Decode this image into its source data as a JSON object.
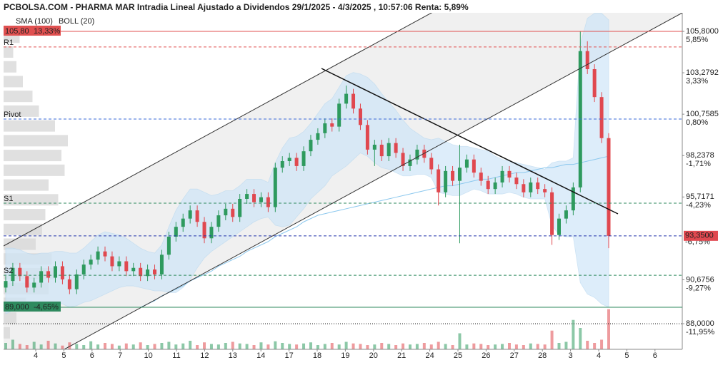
{
  "chart_data": {
    "type": "candlestick",
    "title": "PCBOLSA.COM - PHARMA MAR Intradia Lineal Ajustado a Dividendos 29/1/2025 - 4/3/2025 , 10:57:06 Renta: 5,89%",
    "legend": [
      {
        "name": "SMA (100)",
        "color": "#8cc8ee"
      },
      {
        "name": "BOLL (20)",
        "color": "#bbbbbb"
      }
    ],
    "categories": [
      "4",
      "5",
      "6",
      "7",
      "10",
      "11",
      "12",
      "13",
      "14",
      "17",
      "18",
      "19",
      "20",
      "21",
      "24",
      "25",
      "26",
      "27",
      "28",
      "3",
      "4",
      "5",
      "6"
    ],
    "up_color": "#2e9a5e",
    "down_color": "#e0484f",
    "open": [
      90.2,
      90.6,
      91.4,
      90.9,
      90.2,
      90.5,
      91.2,
      90.8,
      91.5,
      90.7,
      90.1,
      91.0,
      91.6,
      91.9,
      92.4,
      92.1,
      91.5,
      91.8,
      91.2,
      91.4,
      90.9,
      91.3,
      91.0,
      92.2,
      93.3,
      93.9,
      94.4,
      94.9,
      94.2,
      93.2,
      93.9,
      94.6,
      95.0,
      94.5,
      95.6,
      95.9,
      95.4,
      95.7,
      95.1,
      97.5,
      97.9,
      98.1,
      97.6,
      98.5,
      99.2,
      99.6,
      100.2,
      100.0,
      101.4,
      102.0,
      101.1,
      100.1,
      98.6,
      98.9,
      98.2,
      99.0,
      98.4,
      97.6,
      98.0,
      98.6,
      98.1,
      97.4,
      96.0,
      97.3,
      96.7,
      97.5,
      98.0,
      97.2,
      96.7,
      96.2,
      96.6,
      97.3,
      96.9,
      96.5,
      96.0,
      96.6,
      96.2,
      96.0,
      93.4,
      94.4,
      94.9,
      96.3,
      104.6,
      103.5,
      101.8,
      99.3
    ],
    "high": [
      90.9,
      91.7,
      91.7,
      91.2,
      90.8,
      91.5,
      91.5,
      91.8,
      91.8,
      91.0,
      91.3,
      91.9,
      92.2,
      92.7,
      92.7,
      92.4,
      92.1,
      92.1,
      91.7,
      91.7,
      91.6,
      91.6,
      92.5,
      93.6,
      94.2,
      94.7,
      95.2,
      95.2,
      94.5,
      94.2,
      94.9,
      95.3,
      95.3,
      95.9,
      96.2,
      96.2,
      96.0,
      96.0,
      97.8,
      98.2,
      98.4,
      98.4,
      98.8,
      99.5,
      99.9,
      100.5,
      100.5,
      101.7,
      102.5,
      102.3,
      101.4,
      100.4,
      99.2,
      99.2,
      99.3,
      99.3,
      98.7,
      98.3,
      98.9,
      98.9,
      98.4,
      97.7,
      97.6,
      97.6,
      98.9,
      98.3,
      98.3,
      97.5,
      97.0,
      96.9,
      97.6,
      97.6,
      97.2,
      96.8,
      96.9,
      96.9,
      96.5,
      96.3,
      94.7,
      95.2,
      96.6,
      105.8,
      105.2,
      103.8,
      102.1,
      99.6
    ],
    "low": [
      89.9,
      90.3,
      90.6,
      89.9,
      89.9,
      90.2,
      90.5,
      90.5,
      90.4,
      89.8,
      89.8,
      90.7,
      91.3,
      91.6,
      91.8,
      91.2,
      91.2,
      90.9,
      90.9,
      90.6,
      90.6,
      90.7,
      90.7,
      91.9,
      93.0,
      93.6,
      94.1,
      93.9,
      92.9,
      92.9,
      93.6,
      94.3,
      94.2,
      94.2,
      95.3,
      95.1,
      95.1,
      94.8,
      94.8,
      97.2,
      97.6,
      97.3,
      97.3,
      98.2,
      98.9,
      99.3,
      99.7,
      99.7,
      101.1,
      100.8,
      99.8,
      98.3,
      97.6,
      97.9,
      97.9,
      98.1,
      97.3,
      97.3,
      97.7,
      97.8,
      97.1,
      95.2,
      95.7,
      96.4,
      92.9,
      97.2,
      96.9,
      96.4,
      95.9,
      95.9,
      96.3,
      96.6,
      96.2,
      95.7,
      95.7,
      95.9,
      95.7,
      92.8,
      93.1,
      94.1,
      94.6,
      96.0,
      103.2,
      101.5,
      99.0,
      92.6
    ],
    "close": [
      90.6,
      91.4,
      90.9,
      90.2,
      90.5,
      91.2,
      90.8,
      91.5,
      90.7,
      90.1,
      91.0,
      91.6,
      91.9,
      92.4,
      92.1,
      91.5,
      91.8,
      91.2,
      91.4,
      90.9,
      91.3,
      91.0,
      92.2,
      93.3,
      93.9,
      94.4,
      94.9,
      94.2,
      93.2,
      93.9,
      94.6,
      95.0,
      94.5,
      95.6,
      95.9,
      95.4,
      95.7,
      95.1,
      97.5,
      97.9,
      98.1,
      97.6,
      98.5,
      99.2,
      99.6,
      100.2,
      100.0,
      101.4,
      102.0,
      101.1,
      100.1,
      98.6,
      98.9,
      98.2,
      99.0,
      98.4,
      97.6,
      98.0,
      98.6,
      98.1,
      97.4,
      96.0,
      97.3,
      96.7,
      97.5,
      98.0,
      97.2,
      96.7,
      96.2,
      96.6,
      97.3,
      96.9,
      96.5,
      96.0,
      96.6,
      96.2,
      96.0,
      93.4,
      94.4,
      94.9,
      96.3,
      104.6,
      103.5,
      101.8,
      99.3,
      93.35
    ],
    "volume": [
      12,
      18,
      10,
      8,
      14,
      9,
      16,
      11,
      7,
      13,
      10,
      8,
      15,
      9,
      12,
      10,
      7,
      11,
      9,
      13,
      8,
      10,
      12,
      14,
      9,
      11,
      16,
      8,
      13,
      10,
      9,
      12,
      14,
      11,
      10,
      8,
      13,
      9,
      15,
      12,
      10,
      9,
      11,
      13,
      8,
      10,
      12,
      9,
      14,
      11,
      10,
      8,
      9,
      12,
      10,
      8,
      11,
      9,
      10,
      12,
      9,
      14,
      10,
      8,
      30,
      9,
      11,
      10,
      8,
      9,
      10,
      12,
      9,
      8,
      11,
      10,
      9,
      35,
      12,
      14,
      55,
      40,
      16,
      12,
      18,
      75
    ],
    "volume_lim": [
      0,
      100
    ],
    "sma": [
      null,
      null,
      null,
      null,
      null,
      null,
      null,
      null,
      null,
      null,
      null,
      null,
      null,
      null,
      null,
      null,
      null,
      null,
      null,
      89.0,
      89.2,
      89.4,
      89.7,
      89.9,
      90.1,
      90.3,
      90.6,
      90.8,
      91.0,
      91.2,
      91.5,
      91.7,
      91.9,
      92.1,
      92.4,
      92.6,
      92.8,
      93.0,
      93.3,
      93.5,
      93.7,
      93.9,
      94.2,
      94.4,
      94.6,
      94.7,
      94.8,
      94.9,
      95.0,
      95.1,
      95.2,
      95.3,
      95.4,
      95.5,
      95.6,
      95.7,
      95.8,
      95.9,
      96.0,
      96.1,
      96.2,
      96.3,
      96.4,
      96.4,
      96.5,
      96.6,
      96.7,
      96.8,
      96.8,
      96.9,
      97.0,
      97.1,
      97.2,
      97.2,
      97.3,
      97.4,
      97.5,
      97.5,
      97.6,
      97.7,
      97.7,
      97.8,
      97.9,
      98.0,
      98.1,
      98.2
    ],
    "boll_upper": [
      92.6,
      92.6,
      92.5,
      92.3,
      92.2,
      92.3,
      92.3,
      92.4,
      92.4,
      92.3,
      92.3,
      92.6,
      93.0,
      93.4,
      93.6,
      93.5,
      93.4,
      93.2,
      92.9,
      92.6,
      92.4,
      92.3,
      92.8,
      93.9,
      94.9,
      95.6,
      96.2,
      96.2,
      96.0,
      95.8,
      95.9,
      96.1,
      96.1,
      96.4,
      96.8,
      96.8,
      96.8,
      96.6,
      97.8,
      98.7,
      99.3,
      99.4,
      99.7,
      100.2,
      100.8,
      101.4,
      101.7,
      102.4,
      103.1,
      103.3,
      103.2,
      103.0,
      102.6,
      102.0,
      101.5,
      101.0,
      100.4,
      99.9,
      99.6,
      99.3,
      99.2,
      99.3,
      99.1,
      98.9,
      98.8,
      98.8,
      98.7,
      98.6,
      98.5,
      98.2,
      98.0,
      97.9,
      97.8,
      97.7,
      97.6,
      97.5,
      97.4,
      97.8,
      97.9,
      97.9,
      98.1,
      105.0,
      106.6,
      106.9,
      106.9,
      106.5
    ],
    "boll_lower": [
      88.6,
      88.8,
      89.0,
      89.0,
      89.1,
      89.2,
      89.3,
      89.3,
      89.2,
      89.0,
      89.1,
      89.3,
      89.4,
      89.6,
      89.8,
      90.0,
      90.2,
      90.3,
      90.3,
      90.2,
      90.1,
      90.0,
      90.0,
      89.9,
      89.9,
      90.2,
      90.7,
      91.4,
      92.0,
      92.4,
      92.7,
      93.0,
      93.3,
      93.6,
      93.9,
      94.2,
      94.4,
      94.5,
      94.0,
      93.9,
      94.0,
      94.5,
      95.0,
      95.6,
      96.0,
      96.4,
      97.0,
      97.3,
      97.6,
      98.0,
      98.4,
      98.2,
      97.8,
      97.5,
      97.4,
      97.2,
      97.0,
      97.0,
      97.1,
      97.1,
      96.9,
      96.0,
      95.9,
      95.8,
      95.8,
      96.0,
      96.2,
      96.1,
      95.9,
      95.9,
      95.9,
      96.0,
      95.9,
      95.7,
      95.6,
      95.6,
      95.6,
      94.0,
      93.4,
      93.3,
      93.3,
      90.5,
      89.8,
      89.6,
      89.2,
      89.0
    ],
    "volume_profile": {
      "prices": [
        105.4,
        104.5,
        103.6,
        102.7,
        101.8,
        100.9,
        100.0,
        99.1,
        98.2,
        97.3,
        96.4,
        95.5,
        94.6,
        93.7,
        92.8,
        91.9,
        91.0,
        90.1,
        89.2,
        88.3,
        87.4
      ],
      "values": [
        25,
        15,
        20,
        30,
        45,
        55,
        80,
        100,
        90,
        95,
        70,
        85,
        65,
        60,
        50,
        75,
        80,
        70,
        35,
        20,
        10
      ],
      "lim": [
        0,
        100
      ]
    },
    "ylim": [
      86.44,
      106.93
    ],
    "yticks": [
      {
        "value": 105.8,
        "label": "105,8000",
        "pct": "5,85%"
      },
      {
        "value": 103.2792,
        "label": "103,2792",
        "pct": "3,33%"
      },
      {
        "value": 100.7585,
        "label": "100,7585",
        "pct": "0,80%"
      },
      {
        "value": 98.2378,
        "label": "98,2378",
        "pct": "-1,71%"
      },
      {
        "value": 95.7171,
        "label": "95,7171",
        "pct": "-4,23%"
      },
      {
        "value": 90.6756,
        "label": "90,6756",
        "pct": "-9,27%"
      },
      {
        "value": 88.0,
        "label": "88,0000",
        "pct": "-11,95%"
      }
    ],
    "levels": [
      {
        "value": 105.8,
        "color": "#e05050",
        "style": "solid",
        "box_label": "105,80",
        "box_pct": "13,33%"
      },
      {
        "name": "R1",
        "value": 104.85,
        "color": "#e05050",
        "style": "dashed"
      },
      {
        "name": "Pivot",
        "value": 100.46,
        "color": "#3a68d8",
        "style": "dashed"
      },
      {
        "name": "S1",
        "value": 95.34,
        "color": "#2e8a5e",
        "style": "dashed"
      },
      {
        "value": 93.35,
        "color": "#2233aa",
        "style": "dashed",
        "right_label": "93,3500",
        "right_pct": "-6,75%"
      },
      {
        "name": "S2",
        "value": 90.95,
        "color": "#2e8a5e",
        "style": "dashed"
      },
      {
        "value": 89.0,
        "color": "#2e8a5e",
        "style": "solid",
        "box_label": "89,000",
        "box_pct": "-4,65%"
      },
      {
        "value": 88.0,
        "color": "#000000",
        "style": "dotted"
      }
    ]
  }
}
